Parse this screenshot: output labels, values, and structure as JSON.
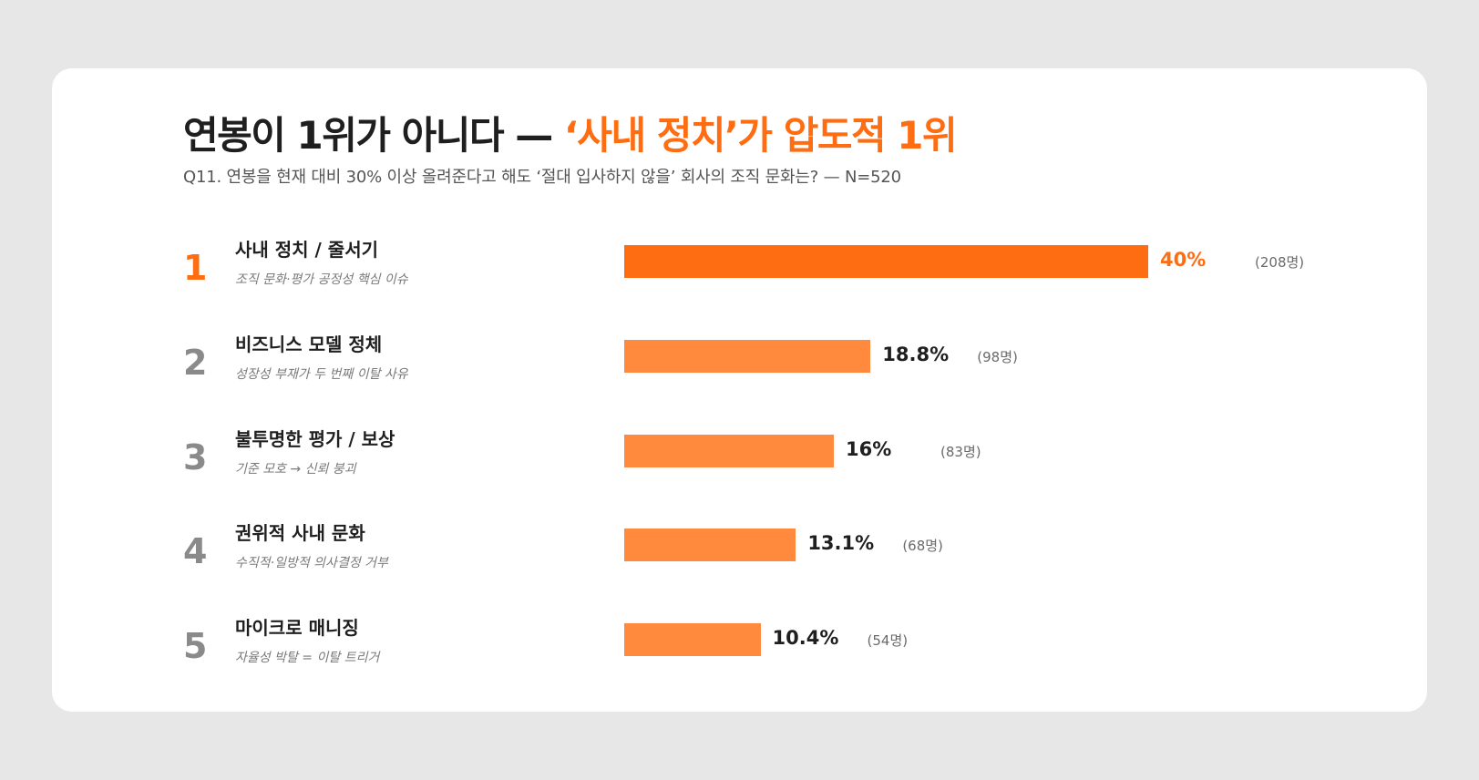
{
  "title": {
    "main": "연봉이 1위가 아니다 — ",
    "accent": "‘사내 정치’가 압도적 1위"
  },
  "subtitle": "Q11. 연봉을 현재 대비 30% 이상 올려준다고 해도 ‘절대 입사하지 않을’ 회사의 조직 문화는? — N=520",
  "colors": {
    "accent": "#ff6d12",
    "bar": "#ff8a3d",
    "background": "#e7e7e7",
    "card": "#ffffff"
  },
  "chart_data": {
    "type": "bar",
    "orientation": "horizontal",
    "xlim": [
      0,
      40
    ],
    "categories": [
      "사내 정치 / 줄서기",
      "비즈니스 모델 정체",
      "불투명한 평가 / 보상",
      "권위적 사내 문화",
      "마이크로 매니징"
    ],
    "values": [
      40,
      18.8,
      16,
      13.1,
      10.4
    ],
    "rows": [
      {
        "rank": "1",
        "label": "사내 정치 / 줄서기",
        "desc": "조직 문화·평가 공정성 핵심 이슈",
        "value": 40,
        "pct": "40%",
        "count": "(208명)"
      },
      {
        "rank": "2",
        "label": "비즈니스 모델 정체",
        "desc": "성장성 부재가 두 번째 이탈 사유",
        "value": 18.8,
        "pct": "18.8%",
        "count": "(98명)"
      },
      {
        "rank": "3",
        "label": "불투명한 평가 / 보상",
        "desc": "기준 모호 → 신뢰 붕괴",
        "value": 16,
        "pct": "16%",
        "count": "(83명)"
      },
      {
        "rank": "4",
        "label": "권위적 사내 문화",
        "desc": "수직적·일방적 의사결정 거부",
        "value": 13.1,
        "pct": "13.1%",
        "count": "(68명)"
      },
      {
        "rank": "5",
        "label": "마이크로 매니징",
        "desc": "자율성 박탈 = 이탈 트리거",
        "value": 10.4,
        "pct": "10.4%",
        "count": "(54명)"
      }
    ]
  }
}
